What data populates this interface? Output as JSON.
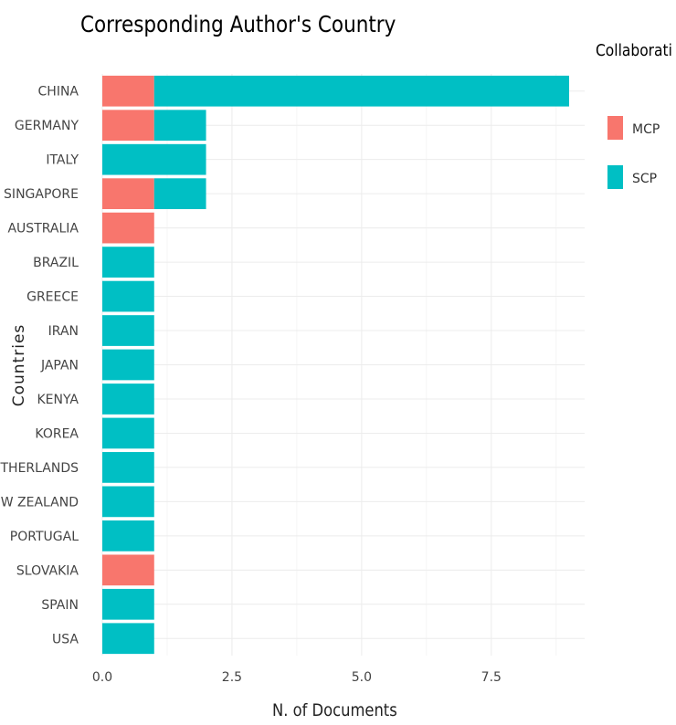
{
  "chart_data": {
    "type": "bar",
    "orientation": "horizontal",
    "stacked": true,
    "title": "Corresponding Author's Country",
    "xlabel": "N. of Documents",
    "ylabel": "Countries",
    "legend_title": "Collaborati",
    "legend_position": "right",
    "grid": true,
    "xlim": [
      0,
      9.3
    ],
    "xticks": [
      "0.0",
      "2.5",
      "5.0",
      "7.5"
    ],
    "xtick_values": [
      0,
      2.5,
      5,
      7.5
    ],
    "categories": [
      "CHINA",
      "GERMANY",
      "ITALY",
      "SINGAPORE",
      "AUSTRALIA",
      "BRAZIL",
      "GREECE",
      "IRAN",
      "JAPAN",
      "KENYA",
      "KOREA",
      "ETHERLANDS",
      "EW ZEALAND",
      "PORTUGAL",
      "SLOVAKIA",
      "SPAIN",
      "USA"
    ],
    "series": [
      {
        "name": "MCP",
        "color": "#F8766D",
        "values": [
          1,
          1,
          0,
          1,
          1,
          0,
          0,
          0,
          0,
          0,
          0,
          0,
          0,
          0,
          1,
          0,
          0
        ]
      },
      {
        "name": "SCP",
        "color": "#00BFC4",
        "values": [
          8,
          1,
          2,
          1,
          0,
          1,
          1,
          1,
          1,
          1,
          1,
          1,
          1,
          1,
          0,
          1,
          1
        ]
      }
    ]
  }
}
